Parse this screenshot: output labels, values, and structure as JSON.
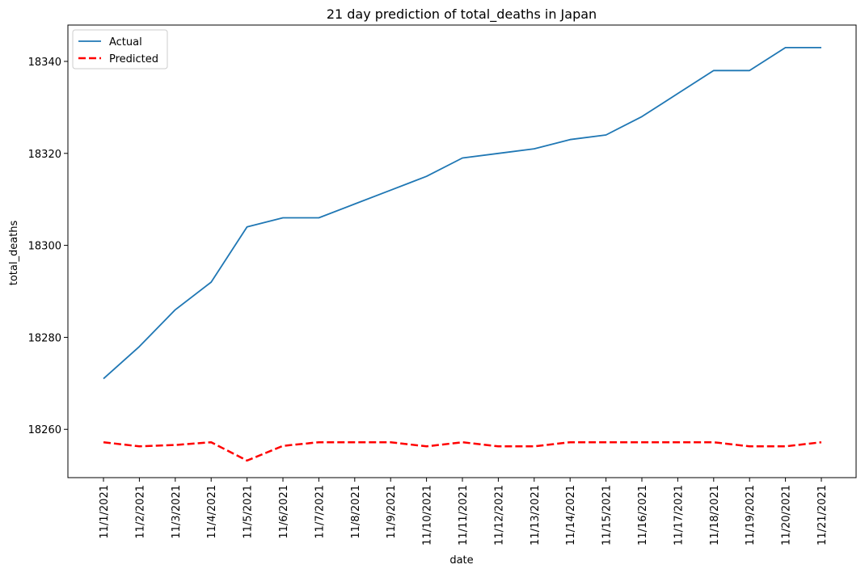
{
  "chart_data": {
    "type": "line",
    "title": "21 day prediction of total_deaths in Japan",
    "xlabel": "date",
    "ylabel": "total_deaths",
    "categories": [
      "11/1/2021",
      "11/2/2021",
      "11/3/2021",
      "11/4/2021",
      "11/5/2021",
      "11/6/2021",
      "11/7/2021",
      "11/8/2021",
      "11/9/2021",
      "11/10/2021",
      "11/11/2021",
      "11/12/2021",
      "11/13/2021",
      "11/14/2021",
      "11/15/2021",
      "11/16/2021",
      "11/17/2021",
      "11/18/2021",
      "11/19/2021",
      "11/20/2021",
      "11/21/2021"
    ],
    "series": [
      {
        "name": "Actual",
        "color": "#1f77b4",
        "style": "solid",
        "values": [
          18271,
          18278,
          18286,
          18292,
          18304,
          18306,
          18306,
          18309,
          18312,
          18315,
          18319,
          18320,
          18321,
          18323,
          18324,
          18328,
          18333,
          18338,
          18338,
          18343,
          18343
        ]
      },
      {
        "name": "Predicted",
        "color": "#ff0000",
        "style": "dashed",
        "values": [
          18257.2,
          18256.3,
          18256.6,
          18257.2,
          18253.2,
          18256.4,
          18257.2,
          18257.2,
          18257.2,
          18256.3,
          18257.2,
          18256.3,
          18256.3,
          18257.2,
          18257.2,
          18257.2,
          18257.2,
          18257.2,
          18256.3,
          18256.3,
          18257.2
        ]
      }
    ],
    "yticks": [
      18260,
      18280,
      18300,
      18320,
      18340
    ],
    "ylim": [
      18249.5,
      18347.9
    ],
    "grid": false,
    "legend": "top-left"
  }
}
